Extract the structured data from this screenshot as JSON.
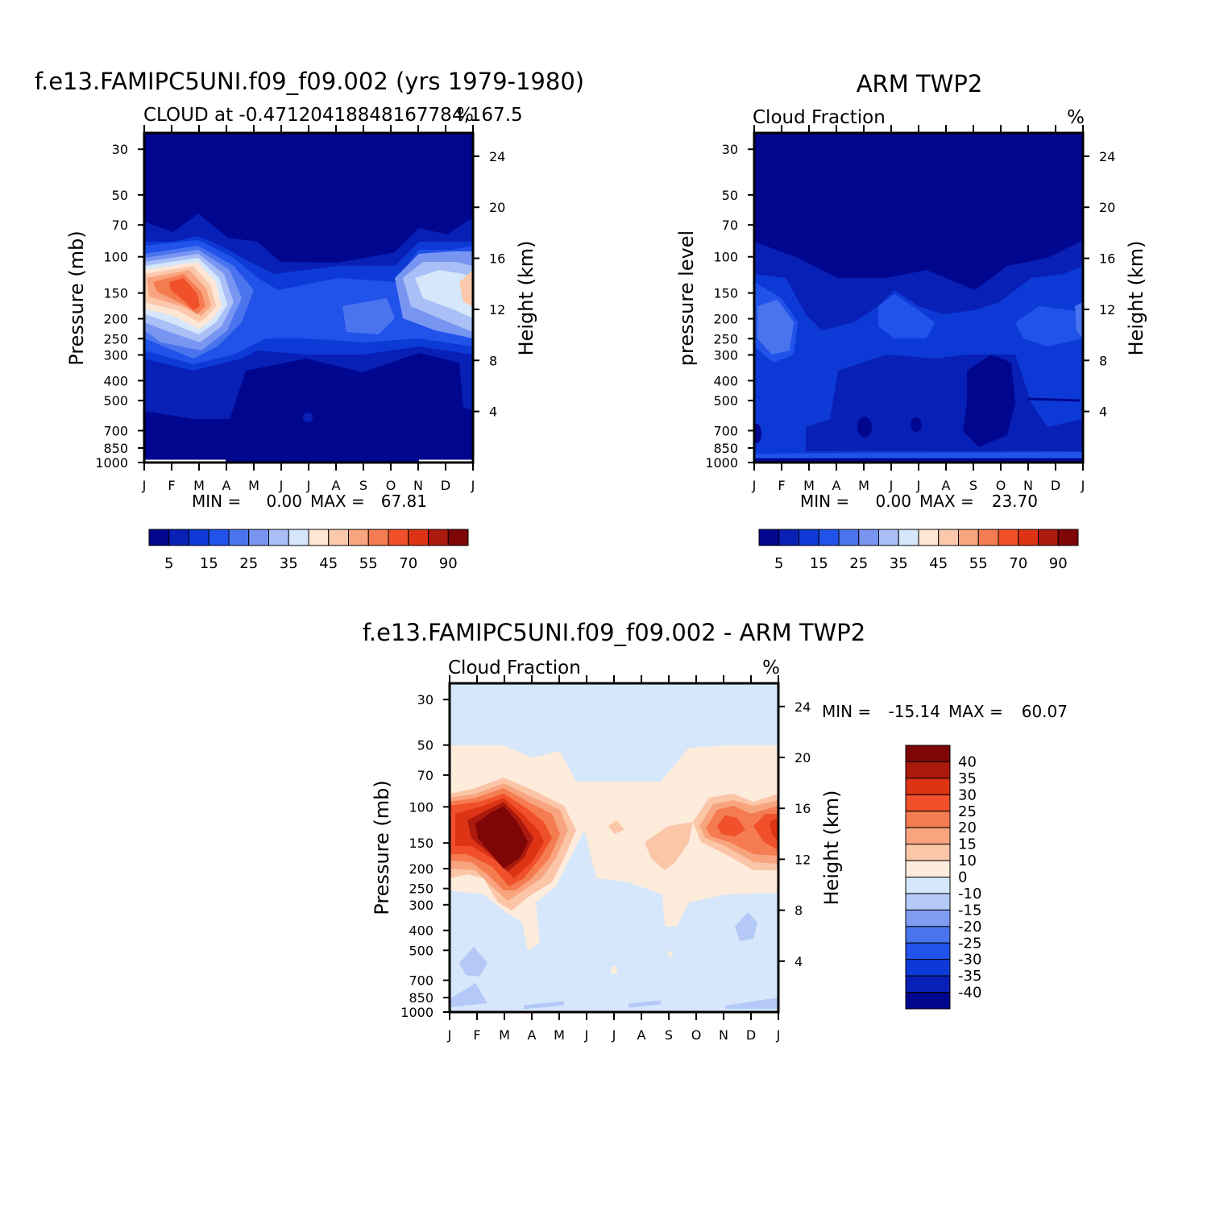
{
  "figure": {
    "panels": [
      {
        "id": "model",
        "title": "f.e13.FAMIPC5UNI.f09_f09.002 (yrs 1979-1980)",
        "subtitle_left": "CLOUD at -0.47120418848167784,167.5",
        "subtitle_right": "%",
        "left_axis_label": "Pressure (mb)",
        "right_axis_label": "Height (km)",
        "stats": {
          "min_label": "MIN =",
          "min": "0.00",
          "max_label": "MAX =",
          "max": "67.81"
        }
      },
      {
        "id": "obs",
        "title": "ARM TWP2",
        "subtitle_left": "Cloud Fraction",
        "subtitle_right": "%",
        "left_axis_label": "pressure level",
        "right_axis_label": "Height (km)",
        "stats": {
          "min_label": "MIN =",
          "min": "0.00",
          "max_label": "MAX =",
          "max": "23.70"
        }
      },
      {
        "id": "diff",
        "title": "f.e13.FAMIPC5UNI.f09_f09.002 - ARM TWP2",
        "subtitle_left": "Cloud Fraction",
        "subtitle_right": "%",
        "left_axis_label": "Pressure (mb)",
        "right_axis_label": "Height (km)",
        "stats": {
          "min_label": "MIN =",
          "min": "-15.14",
          "max_label": "MAX =",
          "max": "60.07"
        }
      }
    ]
  },
  "chart_data": [
    {
      "type": "heatmap",
      "panel": "model",
      "x": [
        "J",
        "F",
        "M",
        "A",
        "M",
        "J",
        "J",
        "A",
        "S",
        "O",
        "N",
        "D",
        "J"
      ],
      "y_pressure_ticks": [
        30,
        50,
        70,
        100,
        150,
        200,
        250,
        300,
        400,
        500,
        700,
        850,
        1000
      ],
      "y_height_ticks": [
        4,
        8,
        12,
        16,
        20,
        24
      ],
      "ylim_pressure": [
        1000,
        25
      ],
      "y_scale": "log",
      "colorbar_labels": [
        "5",
        "15",
        "25",
        "35",
        "45",
        "55",
        "70",
        "90"
      ],
      "colorbar_orientation": "horizontal"
    },
    {
      "type": "heatmap",
      "panel": "obs",
      "x": [
        "J",
        "F",
        "M",
        "A",
        "M",
        "J",
        "J",
        "A",
        "S",
        "O",
        "N",
        "D",
        "J"
      ],
      "y_pressure_ticks": [
        30,
        50,
        70,
        100,
        150,
        200,
        250,
        300,
        400,
        500,
        700,
        850,
        1000
      ],
      "y_height_ticks": [
        4,
        8,
        12,
        16,
        20,
        24
      ],
      "ylim_pressure": [
        1000,
        25
      ],
      "y_scale": "log",
      "colorbar_labels": [
        "5",
        "15",
        "25",
        "35",
        "45",
        "55",
        "70",
        "90"
      ],
      "colorbar_orientation": "horizontal"
    },
    {
      "type": "heatmap",
      "panel": "diff",
      "x": [
        "J",
        "F",
        "M",
        "A",
        "M",
        "J",
        "J",
        "A",
        "S",
        "O",
        "N",
        "D",
        "J"
      ],
      "y_pressure_ticks": [
        30,
        50,
        70,
        100,
        150,
        200,
        250,
        300,
        400,
        500,
        700,
        850,
        1000
      ],
      "y_height_ticks": [
        4,
        8,
        12,
        16,
        20,
        24
      ],
      "ylim_pressure": [
        1000,
        25
      ],
      "y_scale": "log",
      "colorbar_labels": [
        "40",
        "35",
        "30",
        "25",
        "20",
        "15",
        "10",
        "0",
        "-10",
        "-15",
        "-20",
        "-25",
        "-30",
        "-35",
        "-40"
      ],
      "colorbar_orientation": "vertical"
    }
  ],
  "colors": {
    "seq": [
      "#00068e",
      "#0820b6",
      "#0d3ad6",
      "#2152ea",
      "#4a74ee",
      "#7895f2",
      "#a9bff6",
      "#d6e7fb",
      "#fde6d4",
      "#fbc8ab",
      "#f8a57f",
      "#f57b51",
      "#f0502a",
      "#dc3415",
      "#ac1a0e",
      "#7e0606"
    ],
    "diff_neg": [
      "#00068e",
      "#0820b6",
      "#0d3ad6",
      "#2152ea",
      "#4a74ee",
      "#7f9cf2",
      "#b5c9f8",
      "#d6e7fb"
    ],
    "diff_pos": [
      "#fdebdc",
      "#fbc6a8",
      "#f8a57f",
      "#f57b51",
      "#f0502a",
      "#dc3415",
      "#ac1a0e",
      "#7e0606"
    ]
  }
}
